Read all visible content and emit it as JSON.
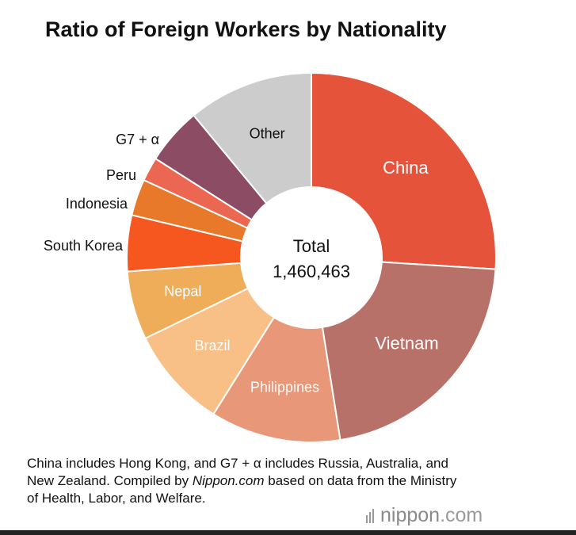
{
  "chart_data": {
    "type": "pie",
    "title": "Ratio of Foreign Workers by Nationality",
    "center_label": "Total",
    "center_value": "1,460,463",
    "categories": [
      "China",
      "Vietnam",
      "Philippines",
      "Brazil",
      "Nepal",
      "South Korea",
      "Indonesia",
      "Peru",
      "G7 + α",
      "Other"
    ],
    "values": [
      26.0,
      21.5,
      11.4,
      8.9,
      6.0,
      4.9,
      3.2,
      2.1,
      5.0,
      11.0
    ],
    "unit": "%",
    "colors": [
      "#e5533a",
      "#b87169",
      "#e89878",
      "#f8bf87",
      "#efad5a",
      "#f5571f",
      "#e8792a",
      "#ec6751",
      "#8c4c63",
      "#cccccc"
    ],
    "label_placement": [
      "inside",
      "inside",
      "inside",
      "inside",
      "inside",
      "outside",
      "outside",
      "outside",
      "outside",
      "inside"
    ],
    "label_color": [
      "#ffffff",
      "#ffffff",
      "#ffffff",
      "#ffffff",
      "#ffffff",
      "#111111",
      "#111111",
      "#111111",
      "#111111",
      "#111111"
    ]
  },
  "note": {
    "part1": "China includes Hong Kong, and G7 + α includes Russia, Australia, and New Zealand. Compiled by ",
    "source_italic": "Nippon.com",
    "part2": " based on data from the Ministry of Health, Labor, and Welfare."
  },
  "logo": {
    "brand": "nippon",
    "suffix": ".com"
  }
}
